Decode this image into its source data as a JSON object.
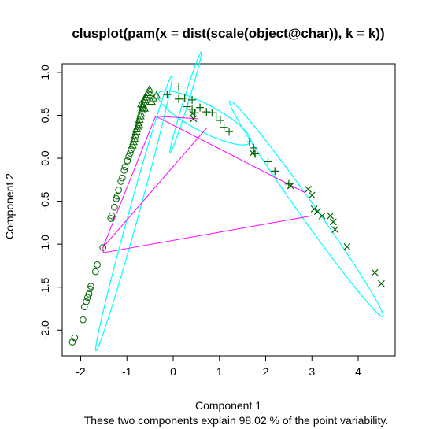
{
  "chart_data": {
    "type": "scatter",
    "title": "clusplot(pam(x = dist(scale(object@char)), k = k))",
    "xlabel": "Component 1",
    "ylabel": "Component 2",
    "subtitle": "These two components explain 98.02 % of the point variability.",
    "xlim": [
      -2.4,
      4.8
    ],
    "ylim": [
      -2.3,
      1.1
    ],
    "xticks": [
      -2,
      -1,
      0,
      1,
      2,
      3,
      4
    ],
    "yticks": [
      -2.0,
      -1.5,
      -1.0,
      -0.5,
      0.0,
      0.5,
      1.0
    ],
    "ytick_labels": [
      "-2.0",
      "-1.5",
      "-1.0",
      "-0.5",
      "0.0",
      "0.5",
      "1.0"
    ],
    "colors": {
      "points": "#006400",
      "ellipse": "#00ffff",
      "lines": "#ff00ff",
      "frame": "#000000"
    },
    "series": [
      {
        "symbol": "circle",
        "points": [
          [
            -2.18,
            -2.14
          ],
          [
            -2.13,
            -2.09
          ],
          [
            -1.95,
            -1.88
          ],
          [
            -1.92,
            -1.73
          ],
          [
            -1.88,
            -1.67
          ],
          [
            -1.85,
            -1.62
          ],
          [
            -1.82,
            -1.58
          ],
          [
            -1.8,
            -1.52
          ],
          [
            -1.78,
            -1.49
          ],
          [
            -1.68,
            -1.32
          ],
          [
            -1.64,
            -1.24
          ],
          [
            -1.52,
            -1.04
          ],
          [
            -1.35,
            -0.7
          ],
          [
            -1.33,
            -0.67
          ],
          [
            -1.27,
            -0.57
          ],
          [
            -1.23,
            -0.47
          ],
          [
            -1.21,
            -0.44
          ],
          [
            -1.18,
            -0.37
          ],
          [
            -1.13,
            -0.27
          ],
          [
            -1.1,
            -0.23
          ],
          [
            -1.06,
            -0.14
          ],
          [
            -1.04,
            -0.1
          ],
          [
            -0.99,
            -0.03
          ],
          [
            -0.96,
            0.02
          ],
          [
            -0.93,
            0.06
          ],
          [
            -0.91,
            0.1
          ]
        ]
      },
      {
        "symbol": "triangle",
        "points": [
          [
            -0.88,
            0.15
          ],
          [
            -0.86,
            0.19
          ],
          [
            -0.84,
            0.23
          ],
          [
            -0.82,
            0.27
          ],
          [
            -0.8,
            0.31
          ],
          [
            -0.79,
            0.34
          ],
          [
            -0.77,
            0.37
          ],
          [
            -0.75,
            0.41
          ],
          [
            -0.73,
            0.45
          ],
          [
            -0.71,
            0.49
          ],
          [
            -0.7,
            0.52
          ],
          [
            -0.68,
            0.56
          ],
          [
            -0.66,
            0.59
          ],
          [
            -0.65,
            0.62
          ],
          [
            -0.63,
            0.65
          ],
          [
            -0.61,
            0.68
          ],
          [
            -0.59,
            0.71
          ],
          [
            -0.57,
            0.74
          ],
          [
            -0.55,
            0.76
          ],
          [
            -0.53,
            0.78
          ],
          [
            -0.51,
            0.8
          ],
          [
            -0.47,
            0.66
          ],
          [
            -0.43,
            0.7
          ],
          [
            -0.36,
            0.73
          ],
          [
            -0.69,
            0.63
          ],
          [
            -0.62,
            0.58
          ],
          [
            -0.74,
            0.39
          ]
        ]
      },
      {
        "symbol": "plus",
        "points": [
          [
            -0.13,
            0.74
          ],
          [
            0.12,
            0.83
          ],
          [
            0.12,
            0.69
          ],
          [
            0.25,
            0.7
          ],
          [
            0.3,
            0.6
          ],
          [
            0.41,
            0.68
          ],
          [
            0.41,
            0.57
          ],
          [
            0.47,
            0.53
          ],
          [
            0.58,
            0.59
          ],
          [
            0.72,
            0.54
          ],
          [
            0.84,
            0.53
          ],
          [
            0.93,
            0.49
          ],
          [
            1.02,
            0.44
          ],
          [
            1.1,
            0.36
          ],
          [
            1.21,
            0.31
          ],
          [
            1.65,
            0.19
          ],
          [
            1.74,
            0.12
          ],
          [
            1.77,
            0.05
          ],
          [
            2.05,
            -0.04
          ],
          [
            2.2,
            -0.15
          ],
          [
            2.5,
            -0.3
          ]
        ]
      },
      {
        "symbol": "cross",
        "points": [
          [
            0.42,
            0.52
          ],
          [
            0.44,
            0.46
          ],
          [
            1.72,
            0.06
          ],
          [
            2.54,
            -0.32
          ],
          [
            2.92,
            -0.36
          ],
          [
            3.0,
            -0.43
          ],
          [
            3.05,
            -0.59
          ],
          [
            3.12,
            -0.62
          ],
          [
            3.22,
            -0.67
          ],
          [
            3.4,
            -0.67
          ],
          [
            3.46,
            -0.74
          ],
          [
            3.5,
            -0.83
          ],
          [
            3.76,
            -1.03
          ],
          [
            4.36,
            -1.33
          ],
          [
            4.5,
            -1.46
          ]
        ]
      }
    ],
    "ellipses": [
      {
        "cx": -0.85,
        "cy": -0.64,
        "rx": 1.8,
        "ry": 0.1,
        "angle_deg": 62.8
      },
      {
        "cx": 0.27,
        "cy": 0.65,
        "rx": 0.68,
        "ry": 0.05,
        "angle_deg": 60.0
      },
      {
        "cx": 0.67,
        "cy": 0.47,
        "rx": 1.04,
        "ry": 0.17,
        "angle_deg": -15.0
      },
      {
        "cx": 2.88,
        "cy": -0.59,
        "rx": 2.08,
        "ry": 0.13,
        "angle_deg": -37.0
      }
    ],
    "segments": [
      [
        [
          -1.52,
          -1.04
        ],
        [
          -0.38,
          0.49
        ]
      ],
      [
        [
          -1.52,
          -1.04
        ],
        [
          0.72,
          0.35
        ]
      ],
      [
        [
          -1.52,
          -1.04
        ],
        [
          -1.52,
          -1.04
        ]
      ],
      [
        [
          -1.52,
          -1.04
        ],
        [
          -1.51,
          -1.1
        ]
      ],
      [
        [
          -1.51,
          -1.1
        ],
        [
          3.0,
          -0.67
        ]
      ],
      [
        [
          -0.38,
          0.49
        ],
        [
          0.53,
          0.46
        ]
      ],
      [
        [
          -0.38,
          0.49
        ],
        [
          2.85,
          -0.4
        ]
      ]
    ]
  }
}
